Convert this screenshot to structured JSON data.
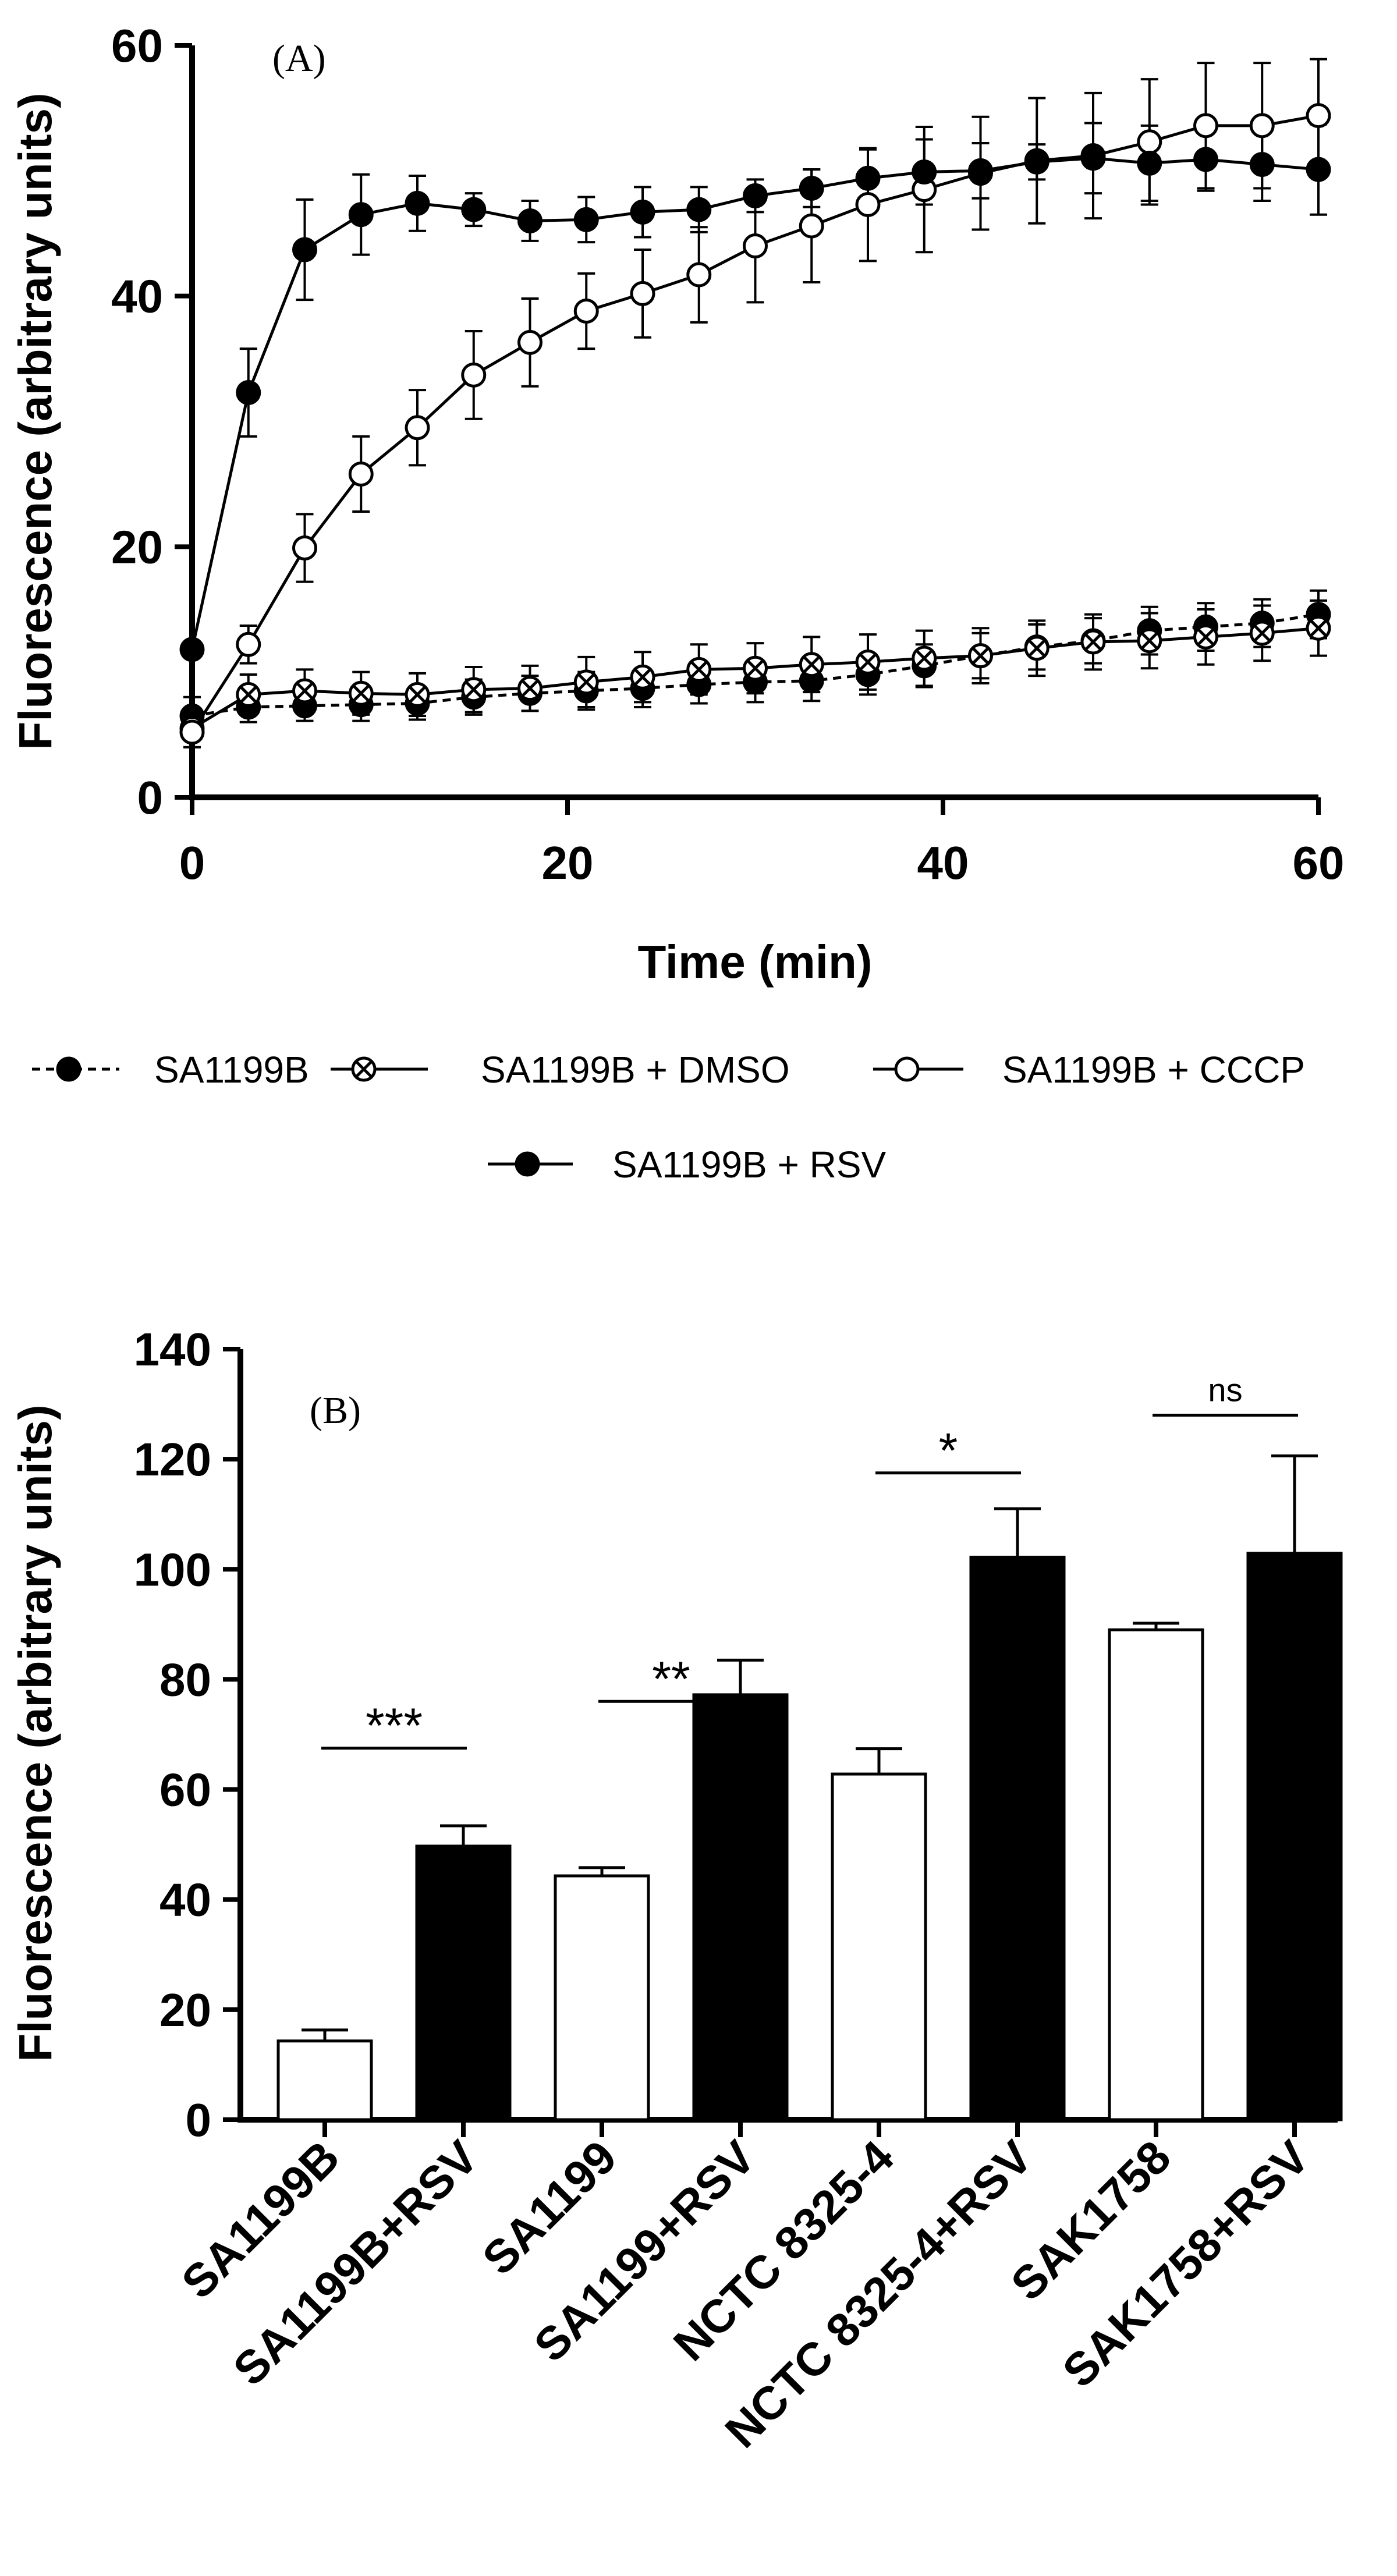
{
  "colors": {
    "ink": "#000000",
    "paper": "#ffffff"
  },
  "chart_data": [
    {
      "type": "line",
      "panel_label": "(A)",
      "xlabel": "Time (min)",
      "ylabel": "Fluorescence (arbitrary units)",
      "xlim": [
        0,
        60
      ],
      "ylim": [
        0,
        60
      ],
      "x_ticks": [
        "0",
        "20",
        "40",
        "60"
      ],
      "y_ticks": [
        "0",
        "20",
        "40",
        "60"
      ],
      "x": [
        0,
        3,
        6,
        9,
        12,
        15,
        18,
        21,
        24,
        27,
        30,
        33,
        36,
        39,
        42,
        45,
        48,
        51,
        54,
        57,
        60
      ],
      "legend_position": "bottom",
      "series": [
        {
          "name": "SA1199B",
          "marker": "filled-circle",
          "line": "dashed",
          "values": [
            6.5,
            7.2,
            7.3,
            7.4,
            7.5,
            8.0,
            8.3,
            8.5,
            8.7,
            9.0,
            9.2,
            9.3,
            9.8,
            10.5,
            11.3,
            12.0,
            12.5,
            13.3,
            13.6,
            13.9,
            14.6
          ],
          "errors": [
            1.5,
            1.2,
            1.2,
            1.3,
            1.3,
            1.4,
            1.4,
            1.5,
            1.5,
            1.5,
            1.6,
            1.6,
            1.6,
            1.7,
            1.8,
            1.8,
            1.8,
            1.9,
            1.9,
            1.9,
            1.9
          ]
        },
        {
          "name": "SA1199B + DMSO",
          "marker": "crossed-circle",
          "line": "solid",
          "values": [
            5.5,
            8.2,
            8.5,
            8.3,
            8.2,
            8.6,
            8.7,
            9.2,
            9.6,
            10.2,
            10.3,
            10.6,
            10.8,
            11.1,
            11.3,
            11.9,
            12.4,
            12.5,
            12.8,
            13.1,
            13.5
          ],
          "errors": [
            1.5,
            1.6,
            1.7,
            1.7,
            1.7,
            1.8,
            1.8,
            2.0,
            2.0,
            2.0,
            2.0,
            2.2,
            2.2,
            2.2,
            2.2,
            2.2,
            2.2,
            2.2,
            2.2,
            2.2,
            2.2
          ]
        },
        {
          "name": "SA1199B + CCCP",
          "marker": "open-circle",
          "line": "solid",
          "values": [
            5.2,
            12.2,
            19.9,
            25.8,
            29.5,
            33.7,
            36.3,
            38.8,
            40.2,
            41.7,
            44.0,
            45.6,
            47.3,
            48.5,
            49.8,
            50.8,
            51.2,
            52.3,
            53.6,
            53.6,
            54.4
          ],
          "errors": [
            1.2,
            1.5,
            2.7,
            3.0,
            3.0,
            3.5,
            3.5,
            3.0,
            3.5,
            3.8,
            4.5,
            4.5,
            4.5,
            5.0,
            4.5,
            5.0,
            5.0,
            5.0,
            5.0,
            5.0,
            4.5
          ]
        },
        {
          "name": "SA1199B + RSV",
          "marker": "filled-circle",
          "line": "solid",
          "values": [
            11.8,
            32.3,
            43.7,
            46.5,
            47.4,
            46.9,
            46.0,
            46.1,
            46.7,
            46.9,
            48.0,
            48.6,
            49.4,
            49.9,
            50.0,
            50.7,
            51.0,
            50.6,
            50.9,
            50.5,
            50.1
          ],
          "errors": [
            0.5,
            3.5,
            4.0,
            3.2,
            2.2,
            1.3,
            1.6,
            1.8,
            2.0,
            1.8,
            1.3,
            1.5,
            2.3,
            2.6,
            2.2,
            1.4,
            2.8,
            3.0,
            2.5,
            2.9,
            3.6
          ]
        }
      ]
    },
    {
      "type": "bar",
      "panel_label": "(B)",
      "xlabel": "",
      "ylabel": "Fluorescence (arbitrary units)",
      "ylim": [
        0,
        140
      ],
      "y_ticks": [
        "0",
        "20",
        "40",
        "60",
        "80",
        "100",
        "120",
        "140"
      ],
      "categories": [
        "SA1199B",
        "SA1199B+RSV",
        "SA1199",
        "SA1199+RSV",
        "NCTC 8325-4",
        "NCTC 8325-4+RSV",
        "SAK1758",
        "SAK1758+RSV"
      ],
      "values": [
        14.3,
        49.7,
        44.3,
        77.2,
        62.8,
        102.2,
        89.0,
        102.9
      ],
      "errors": [
        2.0,
        3.7,
        1.5,
        6.3,
        4.6,
        8.8,
        1.2,
        17.7
      ],
      "fills": [
        "white",
        "black",
        "white",
        "black",
        "white",
        "black",
        "white",
        "black"
      ],
      "significance": [
        {
          "label": "***",
          "from": 0,
          "to": 1,
          "y": 67.5
        },
        {
          "label": "**",
          "from": 2,
          "to": 3,
          "y": 76.0
        },
        {
          "label": "*",
          "from": 4,
          "to": 5,
          "y": 117.5
        },
        {
          "label": "ns",
          "from": 6,
          "to": 7,
          "y": 128.0
        }
      ]
    }
  ]
}
